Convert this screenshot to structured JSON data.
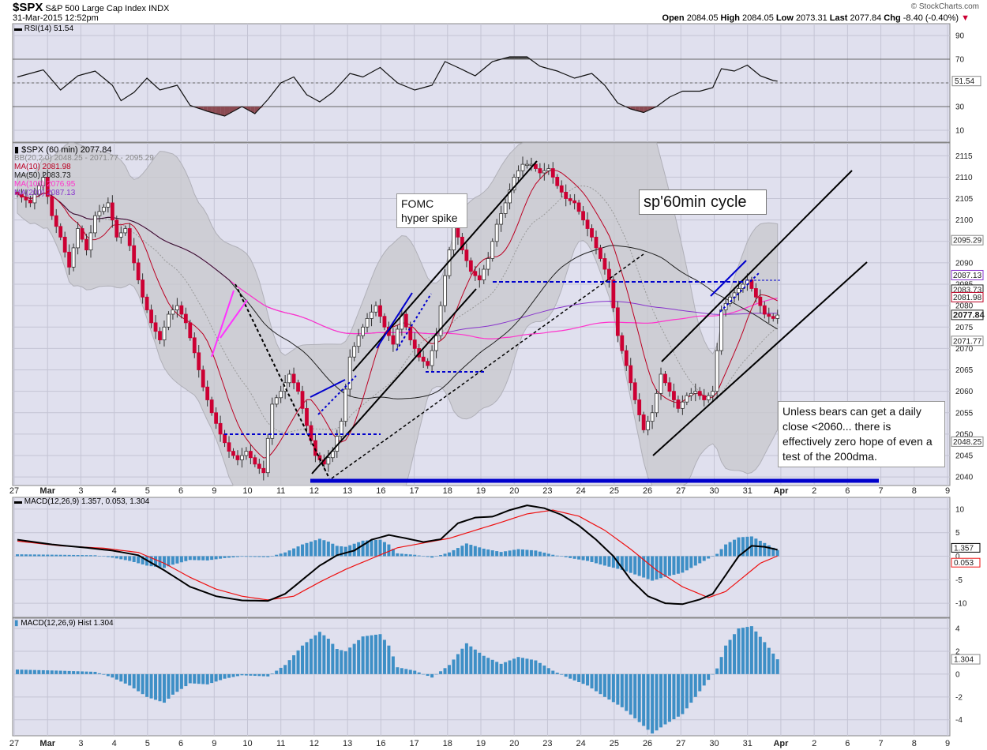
{
  "header": {
    "symbol": "$SPX",
    "name": "S&P 500 Large Cap Index",
    "exchange": "INDX",
    "datetime": "31-Mar-2015 12:52pm",
    "open_label": "Open",
    "open": "2084.05",
    "high_label": "High",
    "high": "2084.05",
    "low_label": "Low",
    "low": "2073.31",
    "last_label": "Last",
    "last": "2077.84",
    "chg_label": "Chg",
    "chg": "-8.40 (-0.40%)",
    "credit": "© StockCharts.com"
  },
  "legends": {
    "rsi": "RSI(14) 51.54",
    "price": "$SPX (60 min) 2077.84",
    "bb": "BB(20,2.0) 2048.25 - 2071.77 - 2095.29",
    "ma10": "MA(10) 2081.98",
    "ma50": "MA(50) 2083.73",
    "ma100": "MA(100) 2076.95",
    "ma200": "MA(200) 2087.13",
    "macd": "MACD(12,26,9) 1.357, 0.053, 1.304",
    "hist": "MACD(12,26,9) Hist 1.304"
  },
  "annotations": {
    "fomc": "FOMC hyper spike",
    "cycle": "sp'60min cycle",
    "bears": "Unless bears can get a daily close <2060... there is effectively zero hope of even a test of the 200dma."
  },
  "colors": {
    "up": "#ffffff",
    "down": "#cc0033",
    "ma10": "#bb0022",
    "ma50": "#222222",
    "ma100": "#ff33cc",
    "ma200": "#8833cc",
    "bb": "#c8c8cc",
    "panel_bg": "#e0e0ee",
    "macd_hist": "#3e8fc6",
    "signal": "#ee1111",
    "rsi_fill": "#8b4a52",
    "annot": "#0000cc"
  },
  "chart_data": {
    "type": "candlestick",
    "interval": "60 min",
    "x_ticks": [
      "27",
      "Mar",
      "3",
      "4",
      "5",
      "6",
      "9",
      "10",
      "11",
      "12",
      "13",
      "16",
      "17",
      "18",
      "19",
      "20",
      "23",
      "24",
      "25",
      "26",
      "27",
      "30",
      "31",
      "Apr",
      "2",
      "6",
      "7",
      "8",
      "9"
    ],
    "price_ticks": [
      2040,
      2045,
      2050,
      2055,
      2060,
      2065,
      2070,
      2075,
      2080,
      2085,
      2090,
      2095,
      2100,
      2105,
      2110,
      2115
    ],
    "price_ylim": [
      2038,
      2118
    ],
    "price_labels": [
      "2095.29",
      "2087.13",
      "2083.73",
      "2081.98",
      "2077.84",
      "2071.77",
      "2048.25"
    ],
    "rsi_ticks": [
      10,
      30,
      50,
      70,
      90
    ],
    "rsi_levels": [
      30,
      70
    ],
    "rsi_last": "51.54",
    "macd_ticks": [
      -10,
      -5,
      0,
      5,
      10
    ],
    "macd_labels": [
      "1.357",
      "0.053"
    ],
    "hist_ticks": [
      -4,
      -2,
      0,
      2,
      4
    ],
    "hist_last": "1.304",
    "price_anchors": [
      [
        0,
        2106
      ],
      [
        3,
        2104
      ],
      [
        6,
        2110
      ],
      [
        8,
        2101
      ],
      [
        10,
        2096
      ],
      [
        12,
        2089
      ],
      [
        14,
        2098
      ],
      [
        16,
        2093
      ],
      [
        18,
        2101
      ],
      [
        21,
        2104
      ],
      [
        23,
        2096
      ],
      [
        25,
        2098
      ],
      [
        27,
        2090
      ],
      [
        29,
        2082
      ],
      [
        31,
        2076
      ],
      [
        33,
        2072
      ],
      [
        35,
        2078
      ],
      [
        37,
        2080
      ],
      [
        39,
        2076
      ],
      [
        41,
        2069
      ],
      [
        43,
        2061
      ],
      [
        45,
        2055
      ],
      [
        47,
        2050
      ],
      [
        49,
        2046
      ],
      [
        51,
        2044
      ],
      [
        53,
        2046
      ],
      [
        55,
        2043
      ],
      [
        57,
        2041
      ],
      [
        59,
        2057
      ],
      [
        61,
        2060
      ],
      [
        63,
        2064
      ],
      [
        65,
        2060
      ],
      [
        67,
        2052
      ],
      [
        69,
        2045
      ],
      [
        71,
        2043
      ],
      [
        73,
        2046
      ],
      [
        75,
        2053
      ],
      [
        77,
        2068
      ],
      [
        79,
        2073
      ],
      [
        81,
        2077
      ],
      [
        83,
        2080
      ],
      [
        85,
        2075
      ],
      [
        87,
        2071
      ],
      [
        89,
        2078
      ],
      [
        91,
        2072
      ],
      [
        93,
        2068
      ],
      [
        95,
        2066
      ],
      [
        97,
        2073
      ],
      [
        99,
        2087
      ],
      [
        101,
        2099
      ],
      [
        103,
        2093
      ],
      [
        105,
        2088
      ],
      [
        107,
        2086
      ],
      [
        109,
        2091
      ],
      [
        111,
        2099
      ],
      [
        113,
        2104
      ],
      [
        115,
        2110
      ],
      [
        117,
        2113
      ],
      [
        119,
        2113
      ],
      [
        121,
        2111
      ],
      [
        123,
        2112
      ],
      [
        125,
        2108
      ],
      [
        127,
        2105
      ],
      [
        129,
        2104
      ],
      [
        131,
        2100
      ],
      [
        133,
        2096
      ],
      [
        135,
        2091
      ],
      [
        137,
        2086
      ],
      [
        139,
        2073
      ],
      [
        141,
        2066
      ],
      [
        143,
        2058
      ],
      [
        145,
        2051
      ],
      [
        147,
        2055
      ],
      [
        149,
        2064
      ],
      [
        151,
        2060
      ],
      [
        153,
        2056
      ],
      [
        155,
        2059
      ],
      [
        157,
        2060
      ],
      [
        159,
        2058
      ],
      [
        161,
        2060
      ],
      [
        163,
        2079
      ],
      [
        165,
        2082
      ],
      [
        167,
        2084
      ],
      [
        169,
        2086
      ],
      [
        171,
        2082
      ],
      [
        173,
        2078
      ],
      [
        175,
        2077
      ],
      [
        176,
        2077.8
      ]
    ],
    "rsi_anchors": [
      [
        0,
        55
      ],
      [
        6,
        61
      ],
      [
        10,
        44
      ],
      [
        14,
        56
      ],
      [
        18,
        60
      ],
      [
        22,
        48
      ],
      [
        24,
        35
      ],
      [
        27,
        42
      ],
      [
        30,
        54
      ],
      [
        33,
        44
      ],
      [
        37,
        48
      ],
      [
        40,
        31
      ],
      [
        44,
        26
      ],
      [
        48,
        22
      ],
      [
        52,
        30
      ],
      [
        55,
        24
      ],
      [
        58,
        36
      ],
      [
        61,
        50
      ],
      [
        64,
        55
      ],
      [
        67,
        40
      ],
      [
        70,
        34
      ],
      [
        73,
        42
      ],
      [
        77,
        58
      ],
      [
        80,
        55
      ],
      [
        84,
        63
      ],
      [
        88,
        50
      ],
      [
        92,
        44
      ],
      [
        96,
        48
      ],
      [
        99,
        68
      ],
      [
        102,
        63
      ],
      [
        106,
        56
      ],
      [
        110,
        68
      ],
      [
        114,
        72
      ],
      [
        118,
        72
      ],
      [
        121,
        64
      ],
      [
        125,
        60
      ],
      [
        129,
        54
      ],
      [
        133,
        58
      ],
      [
        136,
        48
      ],
      [
        139,
        33
      ],
      [
        142,
        28
      ],
      [
        145,
        25
      ],
      [
        148,
        30
      ],
      [
        151,
        38
      ],
      [
        154,
        43
      ],
      [
        158,
        43
      ],
      [
        161,
        46
      ],
      [
        163,
        62
      ],
      [
        166,
        60
      ],
      [
        169,
        65
      ],
      [
        172,
        56
      ],
      [
        175,
        52
      ],
      [
        176,
        51.5
      ]
    ],
    "macd_anchors": [
      [
        0,
        3.5
      ],
      [
        8,
        2.5
      ],
      [
        16,
        1.8
      ],
      [
        22,
        1.2
      ],
      [
        28,
        0.2
      ],
      [
        34,
        -3
      ],
      [
        40,
        -6.5
      ],
      [
        46,
        -8.5
      ],
      [
        52,
        -9.4
      ],
      [
        58,
        -9.5
      ],
      [
        62,
        -8
      ],
      [
        66,
        -5
      ],
      [
        70,
        -2
      ],
      [
        74,
        0.2
      ],
      [
        78,
        1.2
      ],
      [
        82,
        3.5
      ],
      [
        86,
        4.5
      ],
      [
        90,
        3.8
      ],
      [
        94,
        3
      ],
      [
        98,
        3.6
      ],
      [
        102,
        7
      ],
      [
        106,
        8.2
      ],
      [
        110,
        8.4
      ],
      [
        114,
        9.8
      ],
      [
        118,
        10.8
      ],
      [
        122,
        10.2
      ],
      [
        126,
        8.8
      ],
      [
        130,
        6.5
      ],
      [
        134,
        3.5
      ],
      [
        138,
        0
      ],
      [
        142,
        -5
      ],
      [
        146,
        -8.5
      ],
      [
        150,
        -10
      ],
      [
        154,
        -10.2
      ],
      [
        158,
        -9.2
      ],
      [
        161,
        -8
      ],
      [
        164,
        -4
      ],
      [
        167,
        0
      ],
      [
        170,
        2.2
      ],
      [
        173,
        2
      ],
      [
        176,
        1.36
      ]
    ],
    "signal_anchors": [
      [
        0,
        3.2
      ],
      [
        10,
        2.2
      ],
      [
        20,
        1.7
      ],
      [
        28,
        0.8
      ],
      [
        34,
        -1.5
      ],
      [
        40,
        -4.5
      ],
      [
        46,
        -7
      ],
      [
        52,
        -8.5
      ],
      [
        58,
        -9.3
      ],
      [
        64,
        -8.5
      ],
      [
        70,
        -5.5
      ],
      [
        76,
        -2.8
      ],
      [
        82,
        -0.5
      ],
      [
        88,
        1.8
      ],
      [
        94,
        2.8
      ],
      [
        100,
        3.8
      ],
      [
        106,
        5.5
      ],
      [
        112,
        7.2
      ],
      [
        118,
        9
      ],
      [
        124,
        9.8
      ],
      [
        130,
        8.5
      ],
      [
        136,
        5.5
      ],
      [
        142,
        1.5
      ],
      [
        148,
        -3
      ],
      [
        154,
        -6.5
      ],
      [
        160,
        -8.8
      ],
      [
        164,
        -7.5
      ],
      [
        168,
        -4.5
      ],
      [
        172,
        -1.5
      ],
      [
        176,
        0.05
      ]
    ],
    "hist_anchors": [
      [
        0,
        0.4
      ],
      [
        10,
        0.3
      ],
      [
        18,
        0.2
      ],
      [
        22,
        -0.3
      ],
      [
        26,
        -1
      ],
      [
        30,
        -2
      ],
      [
        34,
        -2.5
      ],
      [
        36,
        -1.8
      ],
      [
        40,
        -0.8
      ],
      [
        44,
        -0.9
      ],
      [
        48,
        -0.4
      ],
      [
        52,
        -0.1
      ],
      [
        58,
        -0.2
      ],
      [
        62,
        0.8
      ],
      [
        66,
        2.5
      ],
      [
        70,
        3.7
      ],
      [
        72,
        3.1
      ],
      [
        74,
        2.2
      ],
      [
        76,
        2
      ],
      [
        80,
        3.3
      ],
      [
        84,
        3.5
      ],
      [
        86,
        2.5
      ],
      [
        88,
        0.6
      ],
      [
        92,
        0.3
      ],
      [
        96,
        -0.3
      ],
      [
        100,
        0.8
      ],
      [
        104,
        2.7
      ],
      [
        108,
        1.6
      ],
      [
        112,
        0.9
      ],
      [
        116,
        1.5
      ],
      [
        120,
        1.2
      ],
      [
        124,
        0.3
      ],
      [
        128,
        -0.4
      ],
      [
        132,
        -1
      ],
      [
        136,
        -2
      ],
      [
        140,
        -2.9
      ],
      [
        144,
        -4.2
      ],
      [
        147,
        -5.2
      ],
      [
        150,
        -4.4
      ],
      [
        154,
        -3.5
      ],
      [
        158,
        -1.5
      ],
      [
        162,
        0.5
      ],
      [
        164,
        2.5
      ],
      [
        167,
        4
      ],
      [
        170,
        4.2
      ],
      [
        173,
        2.8
      ],
      [
        176,
        1.3
      ]
    ]
  }
}
